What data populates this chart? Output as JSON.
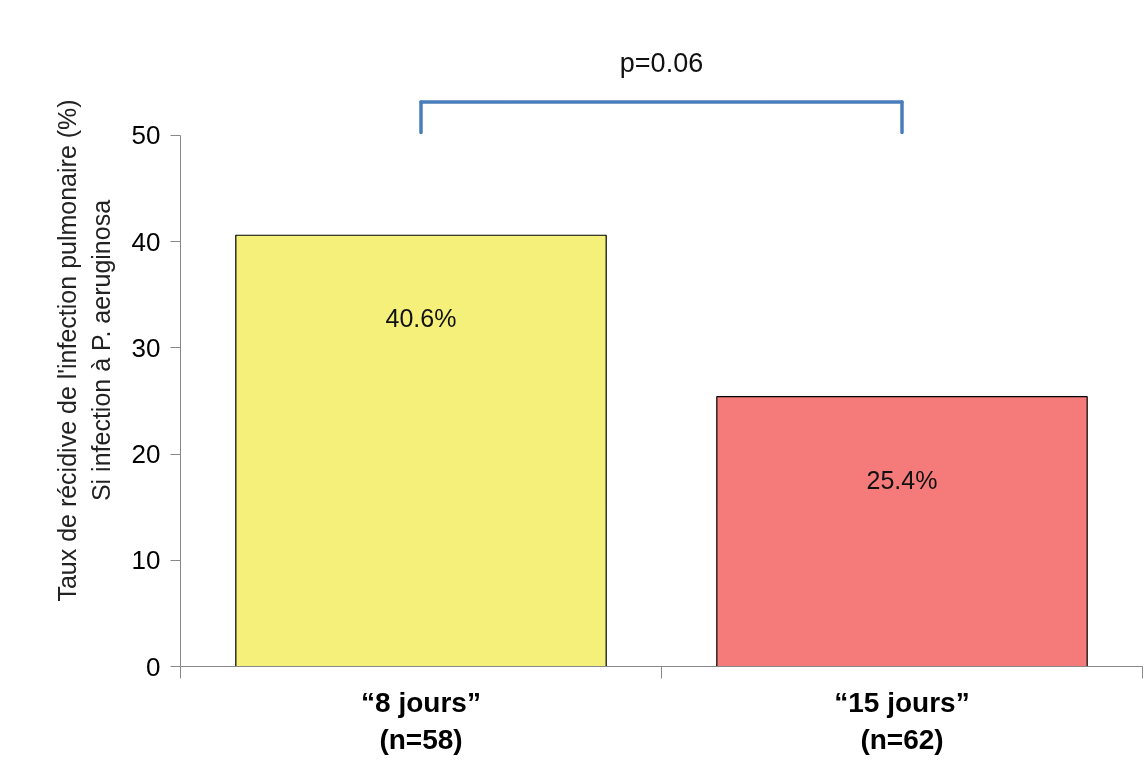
{
  "chart_data": {
    "type": "bar",
    "categories": [
      "“8 jours”\n(n=58)",
      "“15 jours”\n(n=62)"
    ],
    "values": [
      40.6,
      25.4
    ],
    "colors": [
      "#f4f07a",
      "#f57a7a"
    ],
    "value_labels": [
      "40.6%",
      "25.4%"
    ],
    "ylabel": "Taux de récidive de l'infection pulmonaire (%)\nSi infection à P. aeruginosa",
    "ylim": [
      0,
      50
    ],
    "yticks": [
      0,
      10,
      20,
      30,
      40,
      50
    ],
    "annotations": [
      "p=0.06"
    ],
    "grid": false
  }
}
